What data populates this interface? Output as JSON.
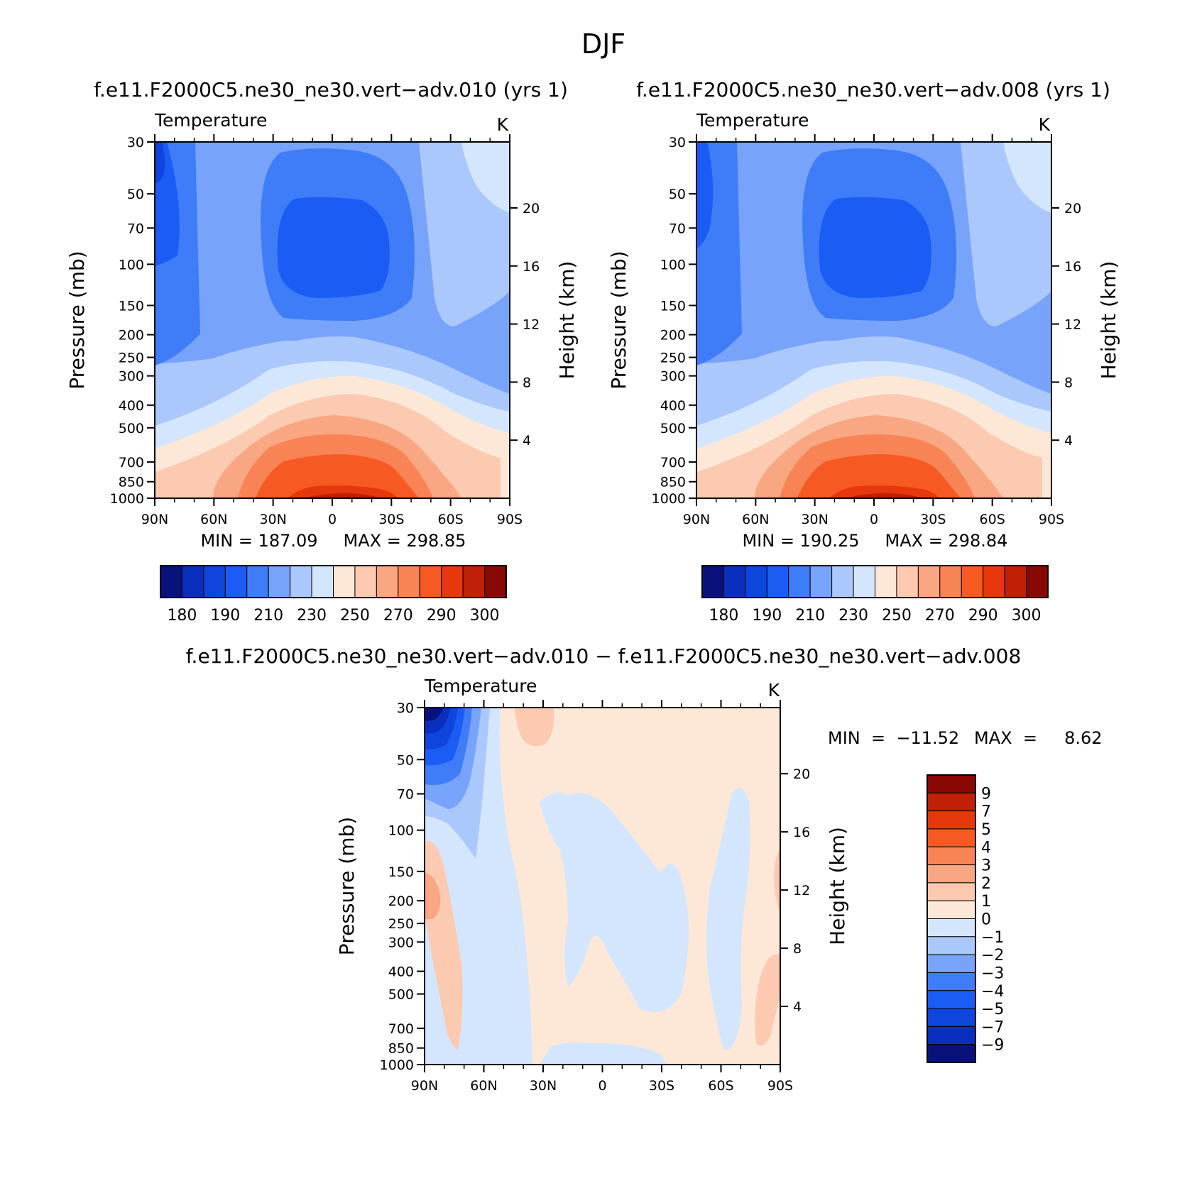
{
  "page_title": "DJF",
  "colors": {
    "temp_scale": [
      "#08127a",
      "#0a2fbe",
      "#0d45dd",
      "#1a5cf4",
      "#3f7cf8",
      "#78a3fb",
      "#abc8fd",
      "#d4e6fe",
      "#fde8d8",
      "#fccab0",
      "#f9a682",
      "#f88455",
      "#f65a22",
      "#e6380c",
      "#c02006",
      "#8a0803"
    ],
    "diff_scale": [
      "#08127a",
      "#0a2fbe",
      "#0d45dd",
      "#1a5cf4",
      "#3f7cf8",
      "#78a3fb",
      "#abc8fd",
      "#d4e6fe",
      "#fde8d8",
      "#fccab0",
      "#f9a682",
      "#f88455",
      "#f65a22",
      "#e6380c",
      "#c02006",
      "#8a0803"
    ]
  },
  "chart_data": [
    {
      "type": "heatmap",
      "title": "f.e11.F2000C5.ne30_ne30.vert−adv.010  (yrs  1)",
      "left_label": "Temperature",
      "right_label": "K",
      "xlabel": "",
      "ylabel": "Pressure  (mb)",
      "y2label": "Height  (km)",
      "xticks": [
        "90N",
        "60N",
        "30N",
        "0",
        "30S",
        "60S",
        "90S"
      ],
      "yticks": [
        30,
        50,
        70,
        100,
        150,
        200,
        250,
        300,
        400,
        500,
        700,
        850,
        1000
      ],
      "y2ticks": [
        20,
        16,
        12,
        8,
        4
      ],
      "ylim": [
        1000,
        30
      ],
      "min_text": "MIN  =  187.09",
      "max_text": "MAX  =  298.85",
      "colorbar_labels": [
        "180",
        "190",
        "210",
        "230",
        "250",
        "270",
        "290",
        "300"
      ],
      "contour_levels": [
        175,
        180,
        185,
        190,
        200,
        210,
        220,
        230,
        240,
        250,
        260,
        270,
        280,
        290,
        295,
        300
      ]
    },
    {
      "type": "heatmap",
      "title": "f.e11.F2000C5.ne30_ne30.vert−adv.008  (yrs  1)",
      "left_label": "Temperature",
      "right_label": "K",
      "xlabel": "",
      "ylabel": "Pressure  (mb)",
      "y2label": "Height  (km)",
      "xticks": [
        "90N",
        "60N",
        "30N",
        "0",
        "30S",
        "60S",
        "90S"
      ],
      "yticks": [
        30,
        50,
        70,
        100,
        150,
        200,
        250,
        300,
        400,
        500,
        700,
        850,
        1000
      ],
      "y2ticks": [
        20,
        16,
        12,
        8,
        4
      ],
      "ylim": [
        1000,
        30
      ],
      "min_text": "MIN  =  190.25",
      "max_text": "MAX  =  298.84",
      "colorbar_labels": [
        "180",
        "190",
        "210",
        "230",
        "250",
        "270",
        "290",
        "300"
      ],
      "contour_levels": [
        175,
        180,
        185,
        190,
        200,
        210,
        220,
        230,
        240,
        250,
        260,
        270,
        280,
        290,
        295,
        300
      ]
    },
    {
      "type": "heatmap",
      "title": "f.e11.F2000C5.ne30_ne30.vert−adv.010  −  f.e11.F2000C5.ne30_ne30.vert−adv.008",
      "left_label": "Temperature",
      "right_label": "K",
      "xlabel": "",
      "ylabel": "Pressure  (mb)",
      "y2label": "Height  (km)",
      "xticks": [
        "90N",
        "60N",
        "30N",
        "0",
        "30S",
        "60S",
        "90S"
      ],
      "yticks": [
        30,
        50,
        70,
        100,
        150,
        200,
        250,
        300,
        400,
        500,
        700,
        850,
        1000
      ],
      "y2ticks": [
        20,
        16,
        12,
        8,
        4
      ],
      "ylim": [
        1000,
        30
      ],
      "min_text": "MIN  =  −11.52",
      "max_text": "MAX  =     8.62",
      "colorbar_labels": [
        "9",
        "7",
        "5",
        "4",
        "3",
        "2",
        "1",
        "0",
        "−1",
        "−2",
        "−3",
        "−4",
        "−5",
        "−7",
        "−9"
      ],
      "contour_levels": [
        -11,
        -9,
        -7,
        -5,
        -4,
        -3,
        -2,
        -1,
        0,
        1,
        2,
        3,
        4,
        5,
        7,
        9
      ]
    }
  ]
}
